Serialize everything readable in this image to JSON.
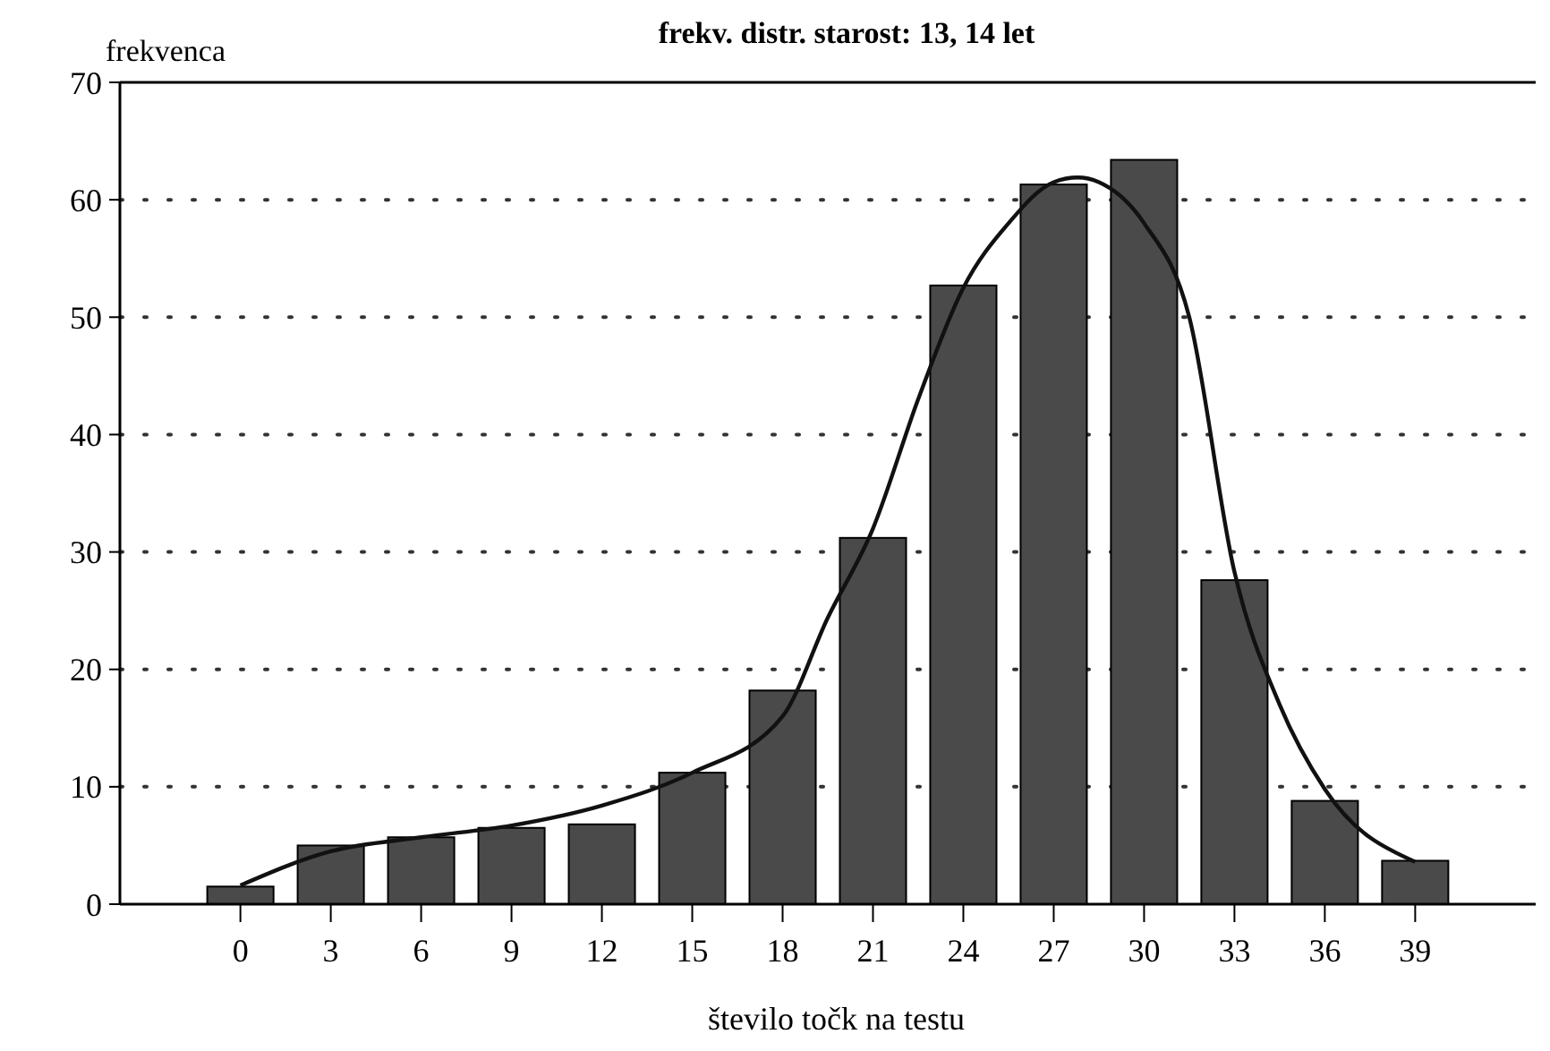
{
  "chart_data": {
    "type": "bar",
    "title": "frekv. distr. starost: 13, 14 let",
    "xlabel": "število točk na testu",
    "ylabel": "frekvenca",
    "x": [
      0,
      3,
      6,
      9,
      12,
      15,
      18,
      21,
      24,
      27,
      30,
      33,
      36,
      39
    ],
    "series": [
      {
        "color": "#4a4a4a",
        "values": [
          1.5,
          5.0,
          5.7,
          6.5,
          6.8,
          11.2,
          18.2,
          31.2,
          52.7,
          61.3,
          63.4,
          27.6,
          8.8,
          3.7
        ]
      },
      {
        "type": "line",
        "color": "#111111",
        "x": [
          0,
          3,
          6,
          9,
          12,
          15,
          18,
          19.5,
          21,
          22.5,
          24,
          25.5,
          27,
          27.8,
          28.5,
          30,
          31.5,
          33,
          34.5,
          36,
          39
        ],
        "values": [
          1.6,
          4.5,
          5.7,
          6.7,
          8.4,
          11.2,
          16,
          24.4,
          32,
          43,
          52.5,
          58,
          61.5,
          61.9,
          61.5,
          58,
          50,
          28.3,
          17,
          9.8,
          3.6
        ]
      }
    ],
    "xlim": [
      -4,
      43
    ],
    "xticks": [
      0,
      3,
      6,
      9,
      12,
      15,
      18,
      21,
      24,
      27,
      30,
      33,
      36,
      39
    ],
    "ylim": [
      0,
      70
    ],
    "yticks": [
      0,
      10,
      20,
      30,
      40,
      50,
      60,
      70
    ],
    "grid": "y",
    "marker": "none",
    "line_style": "solid"
  }
}
